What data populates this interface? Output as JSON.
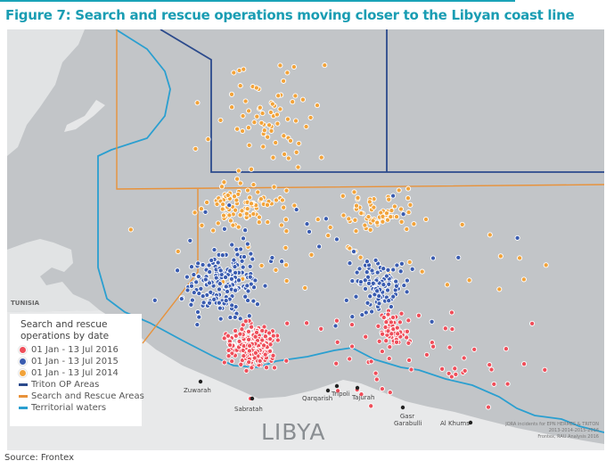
{
  "title": "Figure 7: Search and rescue operations moving closer to the Libyan coast line",
  "colors": {
    "accent": "#1a9db3",
    "sea": "#c2c5c8",
    "land": "#e8e9ea",
    "red": "#ef4e5a",
    "blue": "#3a5cb0",
    "orange": "#f2a33a",
    "triton": "#2b4a8c",
    "sar": "#e8923a",
    "territorial": "#2a9fd0"
  },
  "map": {
    "country_labels": {
      "libya": "LIBYA",
      "tunisia": "TUNISIA"
    },
    "cities": [
      "Zuwarah",
      "Sabratah",
      "Qarqarish",
      "Tripoli",
      "Tajurah",
      "Gasr Garabulli",
      "Al Khums"
    ]
  },
  "legend": {
    "title": "Search and rescue operations by date",
    "series": [
      {
        "label": "01 Jan - 13 Jul 2016",
        "color": "#ef4e5a"
      },
      {
        "label": "01 Jan - 13 Jul 2015",
        "color": "#3a5cb0"
      },
      {
        "label": "01 Jan - 13 Jul 2014",
        "color": "#f2a33a"
      }
    ],
    "lines": [
      {
        "label": "Triton OP Areas",
        "color": "#2b4a8c"
      },
      {
        "label": "Search and Rescue Areas",
        "color": "#e8923a"
      },
      {
        "label": "Territorial waters",
        "color": "#2a9fd0"
      }
    ]
  },
  "credit": [
    "JORA incidents for EPN HERMES & TRITON",
    "2013-2014-2015-2016",
    "Frontex, RAU Analysis 2016"
  ],
  "source": "Source: Frontex"
}
